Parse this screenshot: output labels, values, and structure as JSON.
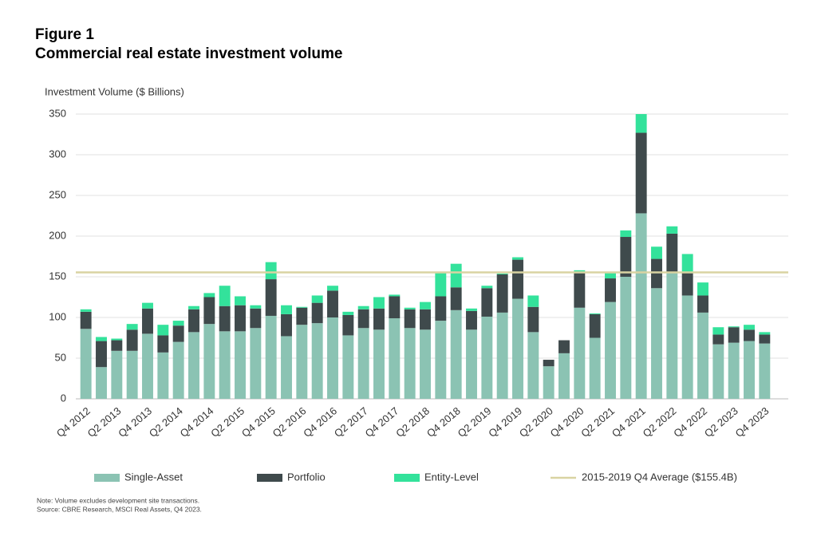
{
  "chart_data": {
    "type": "stacked_bar",
    "title": "Figure 1",
    "subtitle": "Commercial real estate investment volume",
    "y_label": "Investment Volume ($ Billions)",
    "categories": [
      "Q4 2012",
      null,
      "Q2 2013",
      null,
      "Q4 2013",
      null,
      "Q2 2014",
      null,
      "Q4 2014",
      null,
      "Q2 2015",
      null,
      "Q4 2015",
      null,
      "Q2 2016",
      null,
      "Q4 2016",
      null,
      "Q2 2017",
      null,
      "Q4 2017",
      null,
      "Q2 2018",
      null,
      "Q4 2018",
      null,
      "Q2 2019",
      null,
      "Q4 2019",
      null,
      "Q2 2020",
      null,
      "Q4 2020",
      null,
      "Q2 2021",
      null,
      "Q4 2021",
      null,
      "Q2 2022",
      null,
      "Q4 2022",
      null,
      "Q2 2023",
      null,
      "Q4 2023"
    ],
    "series": [
      {
        "name": "Single-Asset",
        "color": "#8bc3b3",
        "values": [
          86,
          39,
          59,
          59,
          80,
          57,
          70,
          82,
          92,
          83,
          83,
          87,
          102,
          77,
          91,
          93,
          100,
          78,
          87,
          85,
          99,
          87,
          85,
          96,
          109,
          85,
          101,
          106,
          123,
          82,
          40,
          56,
          112,
          75,
          119,
          150,
          228,
          136,
          155,
          127,
          106,
          67,
          69,
          71,
          68
        ]
      },
      {
        "name": "Portfolio",
        "color": "#3f4a4c",
        "values": [
          21,
          32,
          13,
          26,
          31,
          21,
          20,
          28,
          33,
          31,
          32,
          24,
          45,
          27,
          21,
          25,
          33,
          25,
          23,
          26,
          27,
          23,
          25,
          30,
          28,
          23,
          35,
          47,
          48,
          31,
          8,
          16,
          43,
          29,
          29,
          49,
          99,
          36,
          48,
          28,
          21,
          12,
          19,
          14,
          11
        ]
      },
      {
        "name": "Entity-Level",
        "color": "#33e29b",
        "values": [
          3,
          5,
          2,
          7,
          7,
          13,
          6,
          4,
          5,
          25,
          11,
          4,
          21,
          11,
          1,
          9,
          6,
          4,
          4,
          14,
          2,
          2,
          9,
          29,
          29,
          3,
          3,
          1,
          3,
          14,
          0,
          0,
          3,
          1,
          7,
          8,
          23,
          15,
          9,
          23,
          16,
          9,
          1,
          6,
          3
        ]
      }
    ],
    "reference_lines": [
      {
        "name": "2015-2019 Q4 Average ($155.4B)",
        "value": 155.4,
        "color": "#d9d3a2"
      }
    ],
    "ylim": [
      0,
      350
    ],
    "yticks": [
      0,
      50,
      100,
      150,
      200,
      250,
      300,
      350
    ],
    "grid": true,
    "notes": [
      "Note: Volume excludes development site transactions.",
      "Source: CBRE Research, MSCI Real Assets, Q4 2023."
    ]
  }
}
